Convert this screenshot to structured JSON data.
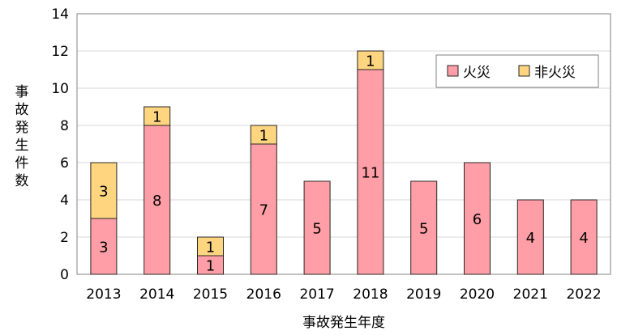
{
  "chart_data": {
    "type": "bar",
    "stacked": true,
    "categories": [
      "2013",
      "2014",
      "2015",
      "2016",
      "2017",
      "2018",
      "2019",
      "2020",
      "2021",
      "2022"
    ],
    "series": [
      {
        "name": "火災",
        "values": [
          3,
          8,
          1,
          7,
          5,
          11,
          5,
          6,
          4,
          4
        ],
        "color": "#FF9EA6"
      },
      {
        "name": "非火災",
        "values": [
          3,
          1,
          1,
          1,
          0,
          1,
          0,
          0,
          0,
          0
        ],
        "color": "#FFD580"
      }
    ],
    "xlabel": "事故発生年度",
    "ylabel": "事故発生件数",
    "ylim": [
      0,
      14
    ],
    "yticks": [
      0,
      2,
      4,
      6,
      8,
      10,
      12,
      14
    ],
    "grid": true,
    "legend_position": "top-right"
  }
}
